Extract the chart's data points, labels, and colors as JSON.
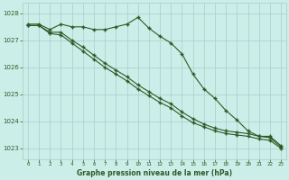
{
  "title": "Graphe pression niveau de la mer (hPa)",
  "bg_color": "#cceee8",
  "line_color": "#2d5a27",
  "grid_color": "#aacccc",
  "xlim": [
    -0.5,
    23.5
  ],
  "ylim": [
    1022.6,
    1028.4
  ],
  "yticks": [
    1023,
    1024,
    1025,
    1026,
    1027,
    1028
  ],
  "xticks": [
    0,
    1,
    2,
    3,
    4,
    5,
    6,
    7,
    8,
    9,
    10,
    11,
    12,
    13,
    14,
    15,
    16,
    17,
    18,
    19,
    20,
    21,
    22,
    23
  ],
  "series1": [
    1027.6,
    1027.6,
    1027.4,
    1027.6,
    1027.5,
    1027.5,
    1027.4,
    1027.4,
    1027.5,
    1027.6,
    1027.85,
    1027.45,
    1027.15,
    1026.9,
    1026.5,
    1025.75,
    1025.2,
    1024.85,
    1024.4,
    1024.05,
    1023.65,
    1023.45,
    1023.45,
    1023.1
  ],
  "series2": [
    1027.55,
    1027.55,
    1027.3,
    1027.3,
    1027.0,
    1026.75,
    1026.45,
    1026.15,
    1025.9,
    1025.65,
    1025.35,
    1025.1,
    1024.85,
    1024.65,
    1024.35,
    1024.1,
    1023.9,
    1023.75,
    1023.65,
    1023.6,
    1023.55,
    1023.45,
    1023.4,
    1023.05
  ],
  "series3": [
    1027.55,
    1027.55,
    1027.25,
    1027.2,
    1026.9,
    1026.6,
    1026.3,
    1026.0,
    1025.75,
    1025.5,
    1025.2,
    1024.95,
    1024.7,
    1024.5,
    1024.2,
    1023.95,
    1023.8,
    1023.65,
    1023.55,
    1023.5,
    1023.45,
    1023.35,
    1023.3,
    1023.0
  ]
}
